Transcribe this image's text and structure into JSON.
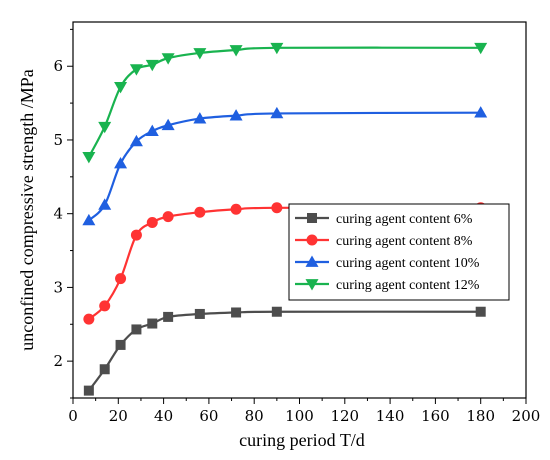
{
  "chart_data": {
    "type": "line",
    "title": "",
    "xlabel": "curing period T/d",
    "ylabel": "unconfined compressive strength /MPa",
    "xlim": [
      0,
      200
    ],
    "ylim": [
      1.5,
      6.6
    ],
    "x_ticks": [
      "0",
      "20",
      "40",
      "60",
      "80",
      "100",
      "120",
      "140",
      "160",
      "180",
      "200"
    ],
    "y_ticks": [
      "2",
      "3",
      "4",
      "5",
      "6"
    ],
    "grid": false,
    "legend_position": "center-right",
    "series": [
      {
        "name": "curing agent content 6%",
        "color": "#4d4d4d",
        "marker": "square",
        "x": [
          7,
          14,
          21,
          28,
          35,
          42,
          56,
          72,
          90,
          180
        ],
        "y": [
          1.6,
          1.89,
          2.22,
          2.43,
          2.51,
          2.6,
          2.64,
          2.66,
          2.67,
          2.67
        ]
      },
      {
        "name": "curing agent content 8%",
        "color": "#ff3333",
        "marker": "circle",
        "x": [
          7,
          14,
          21,
          28,
          35,
          42,
          56,
          72,
          90,
          180
        ],
        "y": [
          2.57,
          2.75,
          3.12,
          3.71,
          3.88,
          3.96,
          4.02,
          4.06,
          4.08,
          4.08
        ]
      },
      {
        "name": "curing agent content 10%",
        "color": "#1f5fe0",
        "marker": "triangle-up",
        "x": [
          7,
          14,
          21,
          28,
          35,
          42,
          56,
          72,
          90,
          180
        ],
        "y": [
          3.91,
          4.12,
          4.68,
          4.98,
          5.12,
          5.2,
          5.29,
          5.33,
          5.36,
          5.37
        ]
      },
      {
        "name": "curing agent content 12%",
        "color": "#19b34f",
        "marker": "triangle-down",
        "x": [
          7,
          14,
          21,
          28,
          35,
          42,
          56,
          72,
          90,
          180
        ],
        "y": [
          4.77,
          5.18,
          5.72,
          5.96,
          6.02,
          6.11,
          6.18,
          6.22,
          6.25,
          6.25
        ]
      }
    ]
  }
}
